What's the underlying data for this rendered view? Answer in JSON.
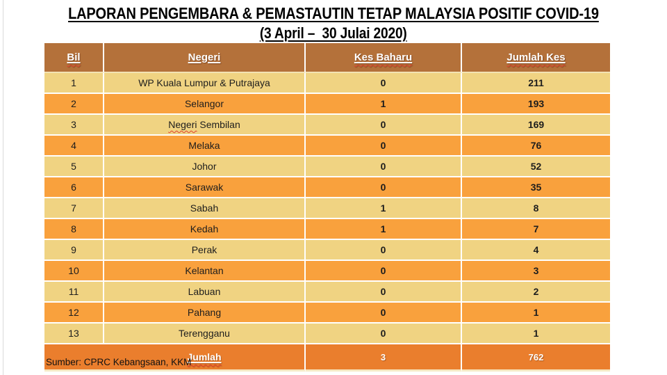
{
  "title": {
    "line1": "LAPORAN PENGEMBARA & PEMASTAUTIN TETAP MALAYSIA POSITIF COVID-19",
    "line2": "(3 April –  30 Julai 2020)"
  },
  "table": {
    "columns": [
      "Bil",
      "Negeri",
      "Kes Baharu",
      "Jumlah Kes"
    ],
    "header_misspelled": [
      true,
      false,
      true,
      true
    ],
    "rows": [
      {
        "bil": "1",
        "negeri": "WP Kuala Lumpur & Putrajaya",
        "kes_baharu": "0",
        "jumlah_kes": "211"
      },
      {
        "bil": "2",
        "negeri": "Selangor",
        "kes_baharu": "1",
        "jumlah_kes": "193"
      },
      {
        "bil": "3",
        "negeri": "Negeri Sembilan",
        "kes_baharu": "0",
        "jumlah_kes": "169",
        "misspelled_word": "Negeri"
      },
      {
        "bil": "4",
        "negeri": "Melaka",
        "kes_baharu": "0",
        "jumlah_kes": "76"
      },
      {
        "bil": "5",
        "negeri": "Johor",
        "kes_baharu": "0",
        "jumlah_kes": "52"
      },
      {
        "bil": "6",
        "negeri": "Sarawak",
        "kes_baharu": "0",
        "jumlah_kes": "35"
      },
      {
        "bil": "7",
        "negeri": "Sabah",
        "kes_baharu": "1",
        "jumlah_kes": "8"
      },
      {
        "bil": "8",
        "negeri": "Kedah",
        "kes_baharu": "1",
        "jumlah_kes": "7"
      },
      {
        "bil": "9",
        "negeri": "Perak",
        "kes_baharu": "0",
        "jumlah_kes": "4"
      },
      {
        "bil": "10",
        "negeri": "Kelantan",
        "kes_baharu": "0",
        "jumlah_kes": "3"
      },
      {
        "bil": "11",
        "negeri": "Labuan",
        "kes_baharu": "0",
        "jumlah_kes": "2"
      },
      {
        "bil": "12",
        "negeri": "Pahang",
        "kes_baharu": "0",
        "jumlah_kes": "1"
      },
      {
        "bil": "13",
        "negeri": "Terengganu",
        "kes_baharu": "0",
        "jumlah_kes": "1"
      }
    ],
    "footer": {
      "label": "Jumlah",
      "kes_baharu": "3",
      "jumlah_kes": "762"
    }
  },
  "source": "Sumber: CPRC Kebangsaan, KKM",
  "colors": {
    "header_bg": "#B4713A",
    "row_light": "#F0D382",
    "row_dark": "#F9A13D",
    "footer_bg": "#EA7E2D",
    "divider": "#FFFFFF",
    "squiggle": "#E0402F"
  },
  "chart_data": {
    "type": "table",
    "title": "LAPORAN PENGEMBARA & PEMASTAUTIN TETAP MALAYSIA POSITIF COVID-19 (3 April – 30 Julai 2020)",
    "columns": [
      "Bil",
      "Negeri",
      "Kes Baharu",
      "Jumlah Kes"
    ],
    "rows": [
      [
        1,
        "WP Kuala Lumpur & Putrajaya",
        0,
        211
      ],
      [
        2,
        "Selangor",
        1,
        193
      ],
      [
        3,
        "Negeri Sembilan",
        0,
        169
      ],
      [
        4,
        "Melaka",
        0,
        76
      ],
      [
        5,
        "Johor",
        0,
        52
      ],
      [
        6,
        "Sarawak",
        0,
        35
      ],
      [
        7,
        "Sabah",
        1,
        8
      ],
      [
        8,
        "Kedah",
        1,
        7
      ],
      [
        9,
        "Perak",
        0,
        4
      ],
      [
        10,
        "Kelantan",
        0,
        3
      ],
      [
        11,
        "Labuan",
        0,
        2
      ],
      [
        12,
        "Pahang",
        0,
        1
      ],
      [
        13,
        "Terengganu",
        0,
        1
      ]
    ],
    "totals": [
      "Jumlah",
      3,
      762
    ]
  }
}
